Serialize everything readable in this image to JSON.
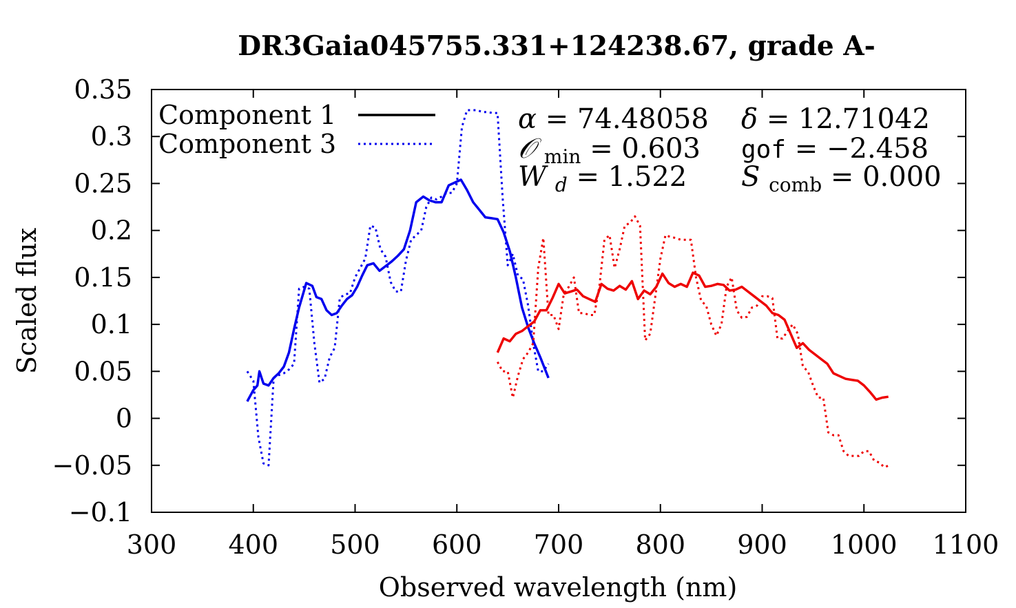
{
  "chart_data": {
    "type": "line",
    "title": "DR3Gaia045755.331+124238.67, grade A-",
    "xlabel": "Observed wavelength (nm)",
    "ylabel": "Scaled flux",
    "xlim": [
      300,
      1100
    ],
    "ylim": [
      -0.1,
      0.35
    ],
    "x_ticks": [
      300,
      400,
      500,
      600,
      700,
      800,
      900,
      1000,
      1100
    ],
    "x_tick_labels": [
      "300",
      "400",
      "500",
      "600",
      "700",
      "800",
      "900",
      "1000",
      "1100"
    ],
    "y_ticks": [
      -0.1,
      -0.05,
      0,
      0.05,
      0.1,
      0.15,
      0.2,
      0.25,
      0.3,
      0.35
    ],
    "y_tick_labels": [
      "−0.1",
      "−0.05",
      "0",
      "0.05",
      "0.1",
      "0.15",
      "0.2",
      "0.25",
      "0.3",
      "0.35"
    ],
    "grid": false,
    "legend": {
      "placement": "top-left",
      "entries": [
        {
          "label": "Component 1",
          "style": "solid"
        },
        {
          "label": "Component 3",
          "style": "dotted"
        }
      ]
    },
    "colors": {
      "blue": "#0000ee",
      "red": "#ee0000",
      "black": "#000000"
    },
    "annotations": {
      "alpha": {
        "symbol": "α",
        "value": "74.48058"
      },
      "delta": {
        "symbol": "δ",
        "value": "12.71042"
      },
      "omin": {
        "symbol": "𝒪",
        "sub": "min",
        "value": "0.603"
      },
      "gof": {
        "label": "gof",
        "value": "−2.458"
      },
      "wd": {
        "symbol": "W",
        "sub": "d",
        "value": "1.522"
      },
      "scomb": {
        "symbol": "S",
        "sub": "comb",
        "value": "0.000"
      }
    },
    "series": [
      {
        "name": "Component 1 (blue)",
        "color": "#0000ee",
        "style": "solid",
        "x": [
          394,
          400,
          404,
          406,
          410,
          415,
          420,
          425,
          430,
          435,
          440,
          445,
          452,
          458,
          462,
          467,
          472,
          477,
          482,
          487,
          492,
          497,
          502,
          507,
          512,
          518,
          524,
          530,
          536,
          542,
          548,
          554,
          560,
          567,
          573,
          579,
          585,
          592,
          598,
          604,
          610,
          616,
          622,
          628,
          634,
          640,
          646,
          652,
          658,
          664,
          670,
          676,
          682,
          690
        ],
        "y": [
          0.018,
          0.03,
          0.035,
          0.05,
          0.037,
          0.035,
          0.043,
          0.048,
          0.055,
          0.07,
          0.095,
          0.118,
          0.144,
          0.141,
          0.129,
          0.127,
          0.115,
          0.11,
          0.112,
          0.12,
          0.127,
          0.131,
          0.14,
          0.152,
          0.163,
          0.165,
          0.157,
          0.162,
          0.167,
          0.173,
          0.18,
          0.2,
          0.23,
          0.236,
          0.232,
          0.23,
          0.23,
          0.248,
          0.251,
          0.254,
          0.243,
          0.23,
          0.222,
          0.214,
          0.213,
          0.212,
          0.198,
          0.178,
          0.15,
          0.118,
          0.097,
          0.08,
          0.065,
          0.043
        ]
      },
      {
        "name": "Component 3 (blue)",
        "color": "#0000ee",
        "style": "dotted",
        "x": [
          394,
          400,
          405,
          410,
          415,
          420,
          425,
          430,
          435,
          440,
          445,
          450,
          455,
          460,
          465,
          470,
          475,
          480,
          485,
          490,
          495,
          500,
          505,
          510,
          515,
          520,
          525,
          530,
          535,
          540,
          545,
          550,
          555,
          560,
          565,
          570,
          575,
          580,
          585,
          590,
          595,
          600,
          605,
          610,
          615,
          620,
          625,
          630,
          635,
          640,
          645,
          650,
          655,
          660,
          665,
          670,
          675,
          680,
          685,
          690
        ],
        "y": [
          0.05,
          0.04,
          -0.02,
          -0.048,
          -0.05,
          0.043,
          0.046,
          0.048,
          0.052,
          0.058,
          0.138,
          0.14,
          0.138,
          0.08,
          0.038,
          0.042,
          0.065,
          0.075,
          0.128,
          0.132,
          0.133,
          0.15,
          0.16,
          0.17,
          0.205,
          0.203,
          0.18,
          0.172,
          0.145,
          0.135,
          0.135,
          0.168,
          0.19,
          0.195,
          0.2,
          0.225,
          0.235,
          0.233,
          0.236,
          0.24,
          0.24,
          0.25,
          0.31,
          0.328,
          0.328,
          0.328,
          0.326,
          0.326,
          0.325,
          0.325,
          0.235,
          0.163,
          0.175,
          0.152,
          0.148,
          0.12,
          0.08,
          0.05,
          0.05,
          0.058
        ]
      },
      {
        "name": "Component 1 (red)",
        "color": "#ee0000",
        "style": "solid",
        "x": [
          640,
          646,
          652,
          658,
          664,
          670,
          676,
          682,
          688,
          694,
          700,
          706,
          712,
          718,
          724,
          730,
          736,
          742,
          748,
          754,
          760,
          766,
          772,
          778,
          784,
          790,
          796,
          802,
          808,
          814,
          820,
          826,
          832,
          838,
          844,
          850,
          856,
          862,
          868,
          874,
          880,
          886,
          892,
          898,
          904,
          910,
          916,
          922,
          928,
          934,
          940,
          946,
          952,
          958,
          964,
          970,
          976,
          982,
          988,
          994,
          1000,
          1006,
          1012,
          1018,
          1024
        ],
        "y": [
          0.07,
          0.085,
          0.082,
          0.09,
          0.093,
          0.098,
          0.103,
          0.115,
          0.115,
          0.128,
          0.143,
          0.133,
          0.135,
          0.137,
          0.13,
          0.127,
          0.124,
          0.143,
          0.138,
          0.136,
          0.141,
          0.137,
          0.146,
          0.127,
          0.136,
          0.132,
          0.14,
          0.154,
          0.144,
          0.14,
          0.143,
          0.14,
          0.155,
          0.152,
          0.14,
          0.141,
          0.143,
          0.142,
          0.136,
          0.137,
          0.14,
          0.135,
          0.13,
          0.125,
          0.12,
          0.112,
          0.11,
          0.105,
          0.09,
          0.075,
          0.08,
          0.073,
          0.068,
          0.063,
          0.058,
          0.048,
          0.045,
          0.042,
          0.041,
          0.04,
          0.035,
          0.028,
          0.02,
          0.022,
          0.023
        ]
      },
      {
        "name": "Component 3 (red)",
        "color": "#ee0000",
        "style": "dotted",
        "x": [
          640,
          645,
          650,
          655,
          660,
          665,
          670,
          675,
          680,
          685,
          690,
          695,
          700,
          705,
          710,
          715,
          720,
          725,
          730,
          735,
          740,
          745,
          750,
          755,
          760,
          765,
          770,
          775,
          780,
          785,
          790,
          795,
          800,
          805,
          810,
          815,
          820,
          825,
          830,
          835,
          840,
          845,
          850,
          855,
          860,
          865,
          870,
          875,
          880,
          885,
          890,
          895,
          900,
          905,
          910,
          915,
          920,
          925,
          930,
          935,
          940,
          945,
          950,
          955,
          960,
          965,
          970,
          975,
          980,
          985,
          990,
          995,
          1000,
          1005,
          1010,
          1015,
          1020,
          1025
        ],
        "y": [
          0.06,
          0.05,
          0.05,
          0.022,
          0.045,
          0.063,
          0.07,
          0.08,
          0.16,
          0.192,
          0.11,
          0.11,
          0.095,
          0.132,
          0.14,
          0.15,
          0.112,
          0.112,
          0.11,
          0.11,
          0.14,
          0.19,
          0.195,
          0.16,
          0.18,
          0.205,
          0.208,
          0.215,
          0.205,
          0.083,
          0.09,
          0.13,
          0.17,
          0.195,
          0.193,
          0.192,
          0.19,
          0.19,
          0.19,
          0.15,
          0.125,
          0.12,
          0.1,
          0.088,
          0.1,
          0.14,
          0.15,
          0.115,
          0.107,
          0.108,
          0.118,
          0.12,
          0.13,
          0.13,
          0.128,
          0.085,
          0.085,
          0.093,
          0.1,
          0.09,
          0.055,
          0.05,
          0.035,
          0.022,
          0.022,
          -0.015,
          -0.018,
          -0.018,
          -0.035,
          -0.04,
          -0.04,
          -0.04,
          -0.035,
          -0.035,
          -0.045,
          -0.047,
          -0.052,
          -0.05
        ]
      }
    ]
  }
}
